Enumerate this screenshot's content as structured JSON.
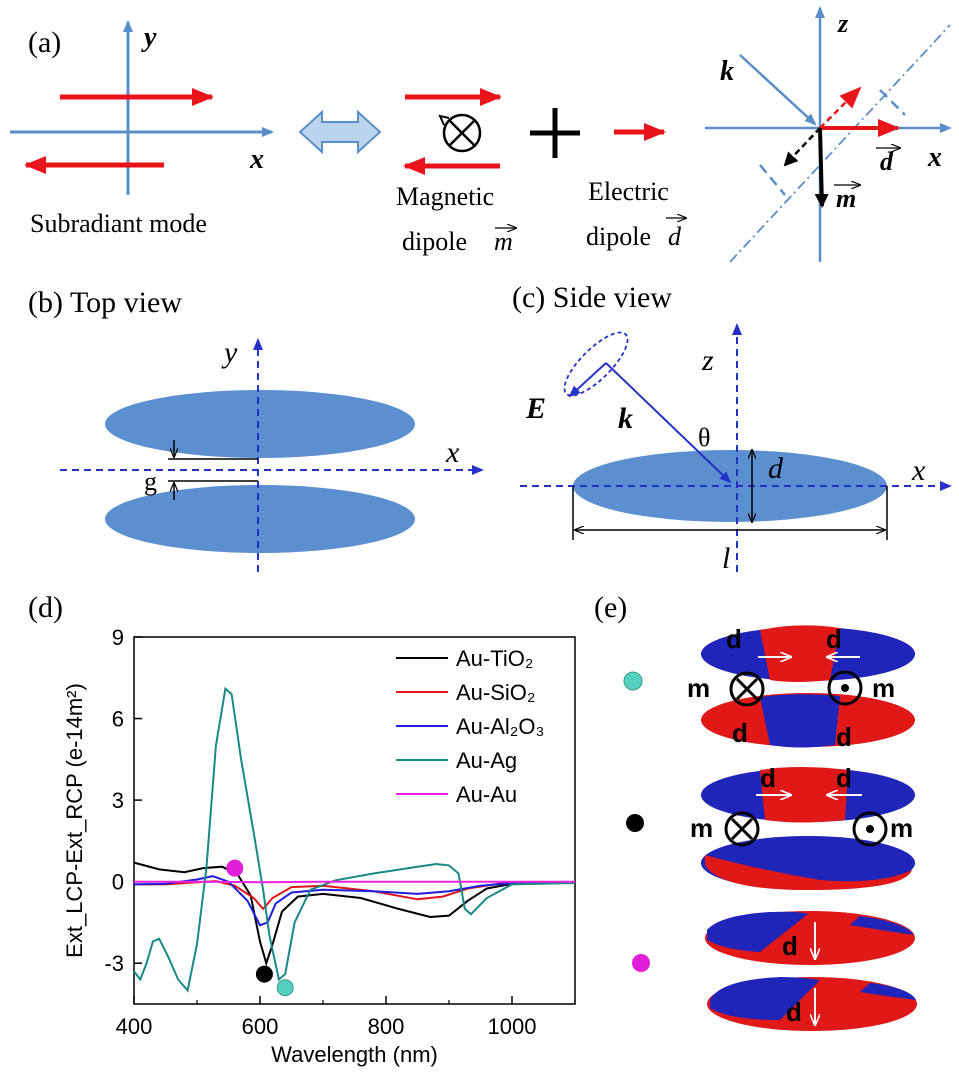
{
  "panels": {
    "a": {
      "label": "(a)",
      "y_axis": "y",
      "x_axis": "x",
      "subradiant_caption": "Subradiant mode",
      "magnetic_caption_1": "Magnetic",
      "magnetic_caption_2": "dipole",
      "magnetic_symbol": "m",
      "electric_caption_1": "Electric",
      "electric_caption_2": "dipole",
      "electric_symbol": "d",
      "right_z": "z",
      "right_k": "k",
      "right_x": "x",
      "right_d": "d",
      "right_m": "m"
    },
    "b": {
      "label": "(b) Top view",
      "y_axis": "y",
      "x_axis": "x",
      "gap": "g"
    },
    "c": {
      "label": "(c) Side view",
      "z_axis": "z",
      "x_axis": "x",
      "E": "E",
      "k": "k",
      "theta": "θ",
      "d": "d",
      "l": "l"
    },
    "d": {
      "label": "(d)"
    },
    "e": {
      "label": "(e)",
      "row1": {
        "d1": "d",
        "d2": "d",
        "m1": "m",
        "m2": "m",
        "d3": "d",
        "d4": "d"
      },
      "row2": {
        "d1": "d",
        "d2": "d",
        "m1": "m",
        "m2": "m"
      },
      "row3": {
        "d1": "d",
        "d2": "d"
      }
    }
  },
  "colors": {
    "blue_shape": "#5b8fd0",
    "axis_blue": "#5b8ec8",
    "red_arrow": "#e8141a",
    "dash_blue": "#2631c8",
    "teal_dot": "#55d0c0",
    "black_dot": "#000000",
    "magenta_dot": "#e21ed8"
  },
  "chart_data": {
    "type": "line",
    "xlabel": "Wavelength (nm)",
    "ylabel": "Ext_LCP-Ext_RCP (e-14m²)",
    "xlim": [
      400,
      1100
    ],
    "ylim": [
      -4.5,
      9
    ],
    "x_ticks": [
      400,
      600,
      800,
      1000
    ],
    "y_ticks": [
      9,
      6,
      3,
      0,
      -3
    ],
    "legend_position": "top-right",
    "series": [
      {
        "name": "Au-TiO₂",
        "color": "#000000",
        "points": [
          [
            400,
            0.7
          ],
          [
            440,
            0.45
          ],
          [
            480,
            0.35
          ],
          [
            510,
            0.5
          ],
          [
            540,
            0.55
          ],
          [
            565,
            0.25
          ],
          [
            585,
            -0.5
          ],
          [
            600,
            -2.2
          ],
          [
            610,
            -3.0
          ],
          [
            620,
            -2.3
          ],
          [
            635,
            -1.1
          ],
          [
            660,
            -0.55
          ],
          [
            700,
            -0.45
          ],
          [
            760,
            -0.6
          ],
          [
            820,
            -1.0
          ],
          [
            870,
            -1.3
          ],
          [
            900,
            -1.25
          ],
          [
            930,
            -0.7
          ],
          [
            960,
            -0.25
          ],
          [
            1000,
            -0.08
          ],
          [
            1100,
            -0.03
          ]
        ]
      },
      {
        "name": "Au-SiO₂",
        "color": "#e0141a",
        "points": [
          [
            400,
            -0.1
          ],
          [
            450,
            -0.1
          ],
          [
            500,
            -0.02
          ],
          [
            530,
            0.02
          ],
          [
            560,
            -0.15
          ],
          [
            590,
            -0.6
          ],
          [
            605,
            -1.0
          ],
          [
            620,
            -0.6
          ],
          [
            650,
            -0.2
          ],
          [
            700,
            -0.15
          ],
          [
            780,
            -0.35
          ],
          [
            850,
            -0.65
          ],
          [
            890,
            -0.55
          ],
          [
            930,
            -0.25
          ],
          [
            980,
            -0.07
          ],
          [
            1100,
            -0.02
          ]
        ]
      },
      {
        "name": "Au-Al₂O₃",
        "color": "#1d1ee0",
        "points": [
          [
            400,
            -0.1
          ],
          [
            450,
            -0.08
          ],
          [
            500,
            0.08
          ],
          [
            525,
            0.2
          ],
          [
            550,
            0.0
          ],
          [
            580,
            -0.7
          ],
          [
            600,
            -1.6
          ],
          [
            612,
            -1.5
          ],
          [
            625,
            -0.8
          ],
          [
            650,
            -0.4
          ],
          [
            700,
            -0.3
          ],
          [
            780,
            -0.35
          ],
          [
            850,
            -0.45
          ],
          [
            900,
            -0.35
          ],
          [
            950,
            -0.15
          ],
          [
            1000,
            -0.05
          ],
          [
            1100,
            -0.02
          ]
        ]
      },
      {
        "name": "Au-Ag",
        "color": "#1a8886",
        "points": [
          [
            400,
            -3.3
          ],
          [
            410,
            -3.6
          ],
          [
            420,
            -3.0
          ],
          [
            430,
            -2.2
          ],
          [
            440,
            -2.1
          ],
          [
            455,
            -2.8
          ],
          [
            470,
            -3.6
          ],
          [
            485,
            -4.0
          ],
          [
            500,
            -2.3
          ],
          [
            515,
            0.5
          ],
          [
            530,
            5.0
          ],
          [
            545,
            7.1
          ],
          [
            555,
            6.9
          ],
          [
            570,
            4.5
          ],
          [
            590,
            1.8
          ],
          [
            605,
            -0.3
          ],
          [
            615,
            -2.0
          ],
          [
            630,
            -3.6
          ],
          [
            640,
            -3.4
          ],
          [
            655,
            -1.5
          ],
          [
            680,
            -0.3
          ],
          [
            720,
            0.05
          ],
          [
            780,
            0.3
          ],
          [
            850,
            0.55
          ],
          [
            880,
            0.65
          ],
          [
            900,
            0.6
          ],
          [
            915,
            0.3
          ],
          [
            925,
            -1.0
          ],
          [
            935,
            -1.2
          ],
          [
            960,
            -0.6
          ],
          [
            1000,
            -0.1
          ],
          [
            1100,
            -0.05
          ]
        ]
      },
      {
        "name": "Au-Au",
        "color": "#ee22e0",
        "points": [
          [
            400,
            0.0
          ],
          [
            500,
            0.0
          ],
          [
            600,
            -0.02
          ],
          [
            700,
            0.0
          ],
          [
            800,
            0.0
          ],
          [
            900,
            0.0
          ],
          [
            1000,
            0.0
          ],
          [
            1100,
            0.0
          ]
        ]
      }
    ],
    "markers": [
      {
        "x": 560,
        "y": 0.5,
        "color": "#e21ed8"
      },
      {
        "x": 607,
        "y": -3.4,
        "color": "#000000"
      },
      {
        "x": 640,
        "y": -3.9,
        "color": "#55d0c0"
      }
    ]
  }
}
